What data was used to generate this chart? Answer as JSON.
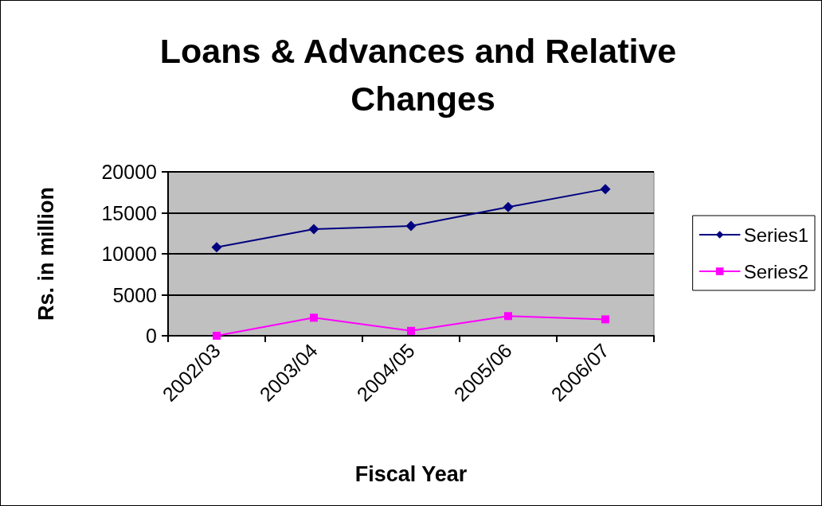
{
  "chart_data": {
    "type": "line",
    "title": "Loans & Advances and Relative Changes",
    "xlabel": "Fiscal Year",
    "ylabel": "Rs. in million",
    "categories": [
      "2002/03",
      "2003/04",
      "2004/05",
      "2005/06",
      "2006/07"
    ],
    "series": [
      {
        "name": "Series1",
        "color": "#000080",
        "marker": "diamond",
        "values": [
          10800,
          13000,
          13400,
          15700,
          17900
        ]
      },
      {
        "name": "Series2",
        "color": "#ff00ff",
        "marker": "square",
        "values": [
          0,
          2200,
          600,
          2400,
          2000
        ]
      }
    ],
    "ylim": [
      0,
      20000
    ],
    "yticks": [
      0,
      5000,
      10000,
      15000,
      20000
    ],
    "grid": "y",
    "legend": "right",
    "line_style": "solid"
  }
}
